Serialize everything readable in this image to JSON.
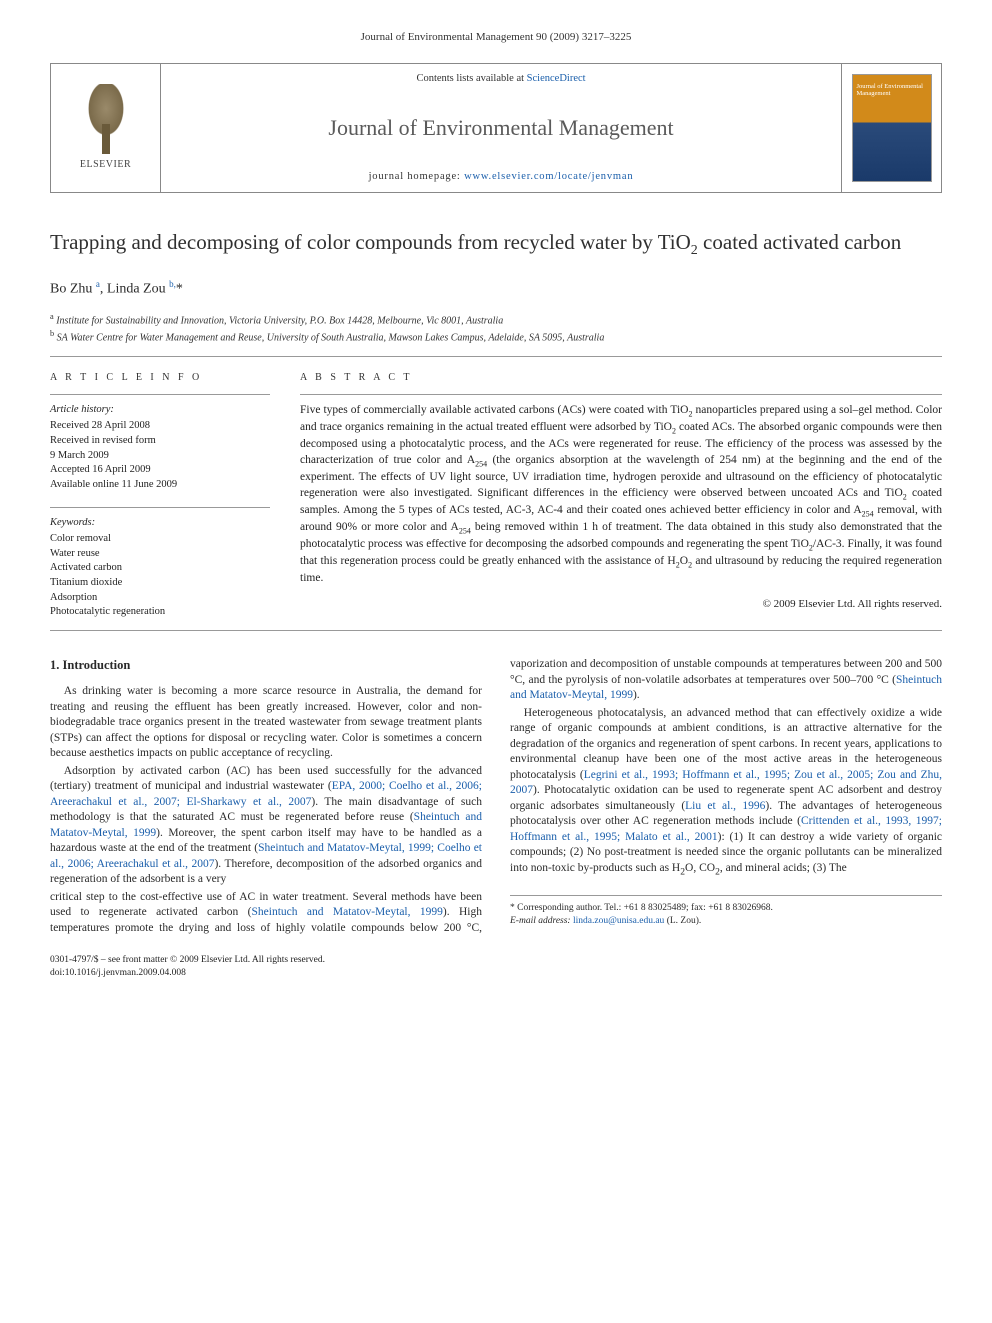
{
  "running_head": "Journal of Environmental Management 90 (2009) 3217–3225",
  "header": {
    "publisher": "ELSEVIER",
    "contents_prefix": "Contents lists available at ",
    "contents_link": "ScienceDirect",
    "journal_name": "Journal of Environmental Management",
    "homepage_prefix": "journal homepage: ",
    "homepage_url": "www.elsevier.com/locate/jenvman",
    "cover_label": "Journal of Environmental Management"
  },
  "title_html": "Trapping and decomposing of color compounds from recycled water by TiO<sub>2</sub> coated activated carbon",
  "authors_html": "Bo Zhu <sup>a</sup>, Linda Zou <sup>b,</sup>*",
  "affiliations": [
    {
      "sup": "a",
      "text": "Institute for Sustainability and Innovation, Victoria University, P.O. Box 14428, Melbourne, Vic 8001, Australia"
    },
    {
      "sup": "b",
      "text": "SA Water Centre for Water Management and Reuse, University of South Australia, Mawson Lakes Campus, Adelaide, SA 5095, Australia"
    }
  ],
  "info_head": "A R T I C L E   I N F O",
  "abstract_head": "A B S T R A C T",
  "history": {
    "head": "Article history:",
    "lines": [
      "Received 28 April 2008",
      "Received in revised form",
      "9 March 2009",
      "Accepted 16 April 2009",
      "Available online 11 June 2009"
    ]
  },
  "keywords": {
    "head": "Keywords:",
    "items": [
      "Color removal",
      "Water reuse",
      "Activated carbon",
      "Titanium dioxide",
      "Adsorption",
      "Photocatalytic regeneration"
    ]
  },
  "abstract_html": "Five types of commercially available activated carbons (ACs) were coated with TiO<sub>2</sub> nanoparticles prepared using a sol–gel method. Color and trace organics remaining in the actual treated effluent were adsorbed by TiO<sub>2</sub> coated ACs. The absorbed organic compounds were then decomposed using a photocatalytic process, and the ACs were regenerated for reuse. The efficiency of the process was assessed by the characterization of true color and A<sub>254</sub> (the organics absorption at the wavelength of 254 nm) at the beginning and the end of the experiment. The effects of UV light source, UV irradiation time, hydrogen peroxide and ultrasound on the efficiency of photocatalytic regeneration were also investigated. Significant differences in the efficiency were observed between uncoated ACs and TiO<sub>2</sub> coated samples. Among the 5 types of ACs tested, AC-3, AC-4 and their coated ones achieved better efficiency in color and A<sub>254</sub> removal, with around 90% or more color and A<sub>254</sub> being removed within 1 h of treatment. The data obtained in this study also demonstrated that the photocatalytic process was effective for decomposing the adsorbed compounds and regenerating the spent TiO<sub>2</sub>/AC-3. Finally, it was found that this regeneration process could be greatly enhanced with the assistance of H<sub>2</sub>O<sub>2</sub> and ultrasound by reducing the required regeneration time.",
  "copyright": "© 2009 Elsevier Ltd. All rights reserved.",
  "section_head": "1. Introduction",
  "paras": [
    "As drinking water is becoming a more scarce resource in Australia, the demand for treating and reusing the effluent has been greatly increased. However, color and non-biodegradable trace organics present in the treated wastewater from sewage treatment plants (STPs) can affect the options for disposal or recycling water. Color is sometimes a concern because aesthetics impacts on public acceptance of recycling.",
    "Adsorption by activated carbon (AC) has been used successfully for the advanced (tertiary) treatment of municipal and industrial wastewater (<a href=\"#\" data-name=\"ref-link\" data-interactable=\"true\">EPA, 2000; Coelho et al., 2006; Areerachakul et al., 2007; El-Sharkawy et al., 2007</a>). The main disadvantage of such methodology is that the saturated AC must be regenerated before reuse (<a href=\"#\" data-name=\"ref-link\" data-interactable=\"true\">Sheintuch and Matatov-Meytal, 1999</a>). Moreover, the spent carbon itself may have to be handled as a hazardous waste at the end of the treatment (<a href=\"#\" data-name=\"ref-link\" data-interactable=\"true\">Sheintuch and Matatov-Meytal, 1999; Coelho et al., 2006; Areerachakul et al., 2007</a>). Therefore, decomposition of the adsorbed organics and regeneration of the adsorbent is a very",
    "critical step to the cost-effective use of AC in water treatment. Several methods have been used to regenerate activated carbon (<a href=\"#\" data-name=\"ref-link\" data-interactable=\"true\">Sheintuch and Matatov-Meytal, 1999</a>). High temperatures promote the drying and loss of highly volatile compounds below 200 °C, vaporization and decomposition of unstable compounds at temperatures between 200 and 500 °C, and the pyrolysis of non-volatile adsorbates at temperatures over 500–700 °C (<a href=\"#\" data-name=\"ref-link\" data-interactable=\"true\">Sheintuch and Matatov-Meytal, 1999</a>).",
    "Heterogeneous photocatalysis, an advanced method that can effectively oxidize a wide range of organic compounds at ambient conditions, is an attractive alternative for the degradation of the organics and regeneration of spent carbons. In recent years, applications to environmental cleanup have been one of the most active areas in the heterogeneous photocatalysis (<a href=\"#\" data-name=\"ref-link\" data-interactable=\"true\">Legrini et al., 1993; Hoffmann et al., 1995; Zou et al., 2005; Zou and Zhu, 2007</a>). Photocatalytic oxidation can be used to regenerate spent AC adsorbent and destroy organic adsorbates simultaneously (<a href=\"#\" data-name=\"ref-link\" data-interactable=\"true\">Liu et al., 1996</a>). The advantages of heterogeneous photocatalysis over other AC regeneration methods include (<a href=\"#\" data-name=\"ref-link\" data-interactable=\"true\">Crittenden et al., 1993, 1997; Hoffmann et al., 1995; Malato et al., 2001</a>): (1) It can destroy a wide variety of organic compounds; (2) No post-treatment is needed since the organic pollutants can be mineralized into non-toxic by-products such as H<sub>2</sub>O, CO<sub>2</sub>, and mineral acids; (3) The"
  ],
  "corresponding": {
    "line1": "* Corresponding author. Tel.: +61 8 83025489; fax: +61 8 83026968.",
    "email_label": "E-mail address: ",
    "email": "linda.zou@unisa.edu.au",
    "email_suffix": " (L. Zou)."
  },
  "footer": {
    "line1": "0301-4797/$ – see front matter © 2009 Elsevier Ltd. All rights reserved.",
    "line2": "doi:10.1016/j.jenvman.2009.04.008"
  },
  "colors": {
    "link": "#1b5fab",
    "text": "#2a2a2a",
    "rule": "#999999",
    "cover_top": "#d28a1a",
    "cover_bottom": "#1a3a6a"
  }
}
